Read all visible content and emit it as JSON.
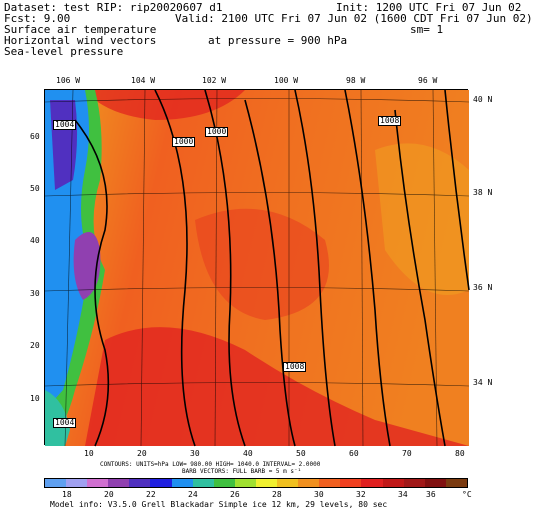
{
  "header": {
    "line1_left": "Dataset: test  RIP: rip20020607 d1",
    "line1_right": "Init: 1200 UTC Fri 07 Jun 02",
    "line2_left": "Fcst:    9.00",
    "line2_right": "Valid: 2100 UTC Fri 07 Jun 02 (1600 CDT Fri 07 Jun 02)",
    "line3_left": "Surface air temperature",
    "line3_right": "sm= 1",
    "line4_left": "Horizontal wind vectors",
    "line4_mid": "at pressure =  900 hPa",
    "line5_left": "Sea-level pressure"
  },
  "longitude_labels": [
    "106 W",
    "104 W",
    "102 W",
    "100 W",
    "98 W",
    "96 W"
  ],
  "latitude_labels": [
    "40 N",
    "38 N",
    "36 N",
    "34 N"
  ],
  "y_ticks": [
    "60",
    "50",
    "40",
    "30",
    "20",
    "10"
  ],
  "x_ticks": [
    "10",
    "20",
    "30",
    "40",
    "50",
    "60",
    "70",
    "80"
  ],
  "contour_labels": [
    "1004",
    "1000",
    "1000",
    "1008",
    "1008",
    "1004"
  ],
  "contours_info": "CONTOURS:  UNITS=hPa  LOW=  980.00      HIGH=  1040.0      INTERVAL=   2.0000",
  "barbs_info": "BARB VECTORS:  FULL BARB = 5 m s⁻¹",
  "colorbar": {
    "labels": [
      "18",
      "20",
      "22",
      "24",
      "26",
      "28",
      "30",
      "32",
      "34",
      "36",
      "°C"
    ],
    "colors": [
      "#5fa0f0",
      "#a0a0f0",
      "#d070d0",
      "#9040b0",
      "#5030c0",
      "#2020e0",
      "#2090f0",
      "#30c0a0",
      "#40c040",
      "#a0e030",
      "#f0f030",
      "#f0c020",
      "#f09020",
      "#f06020",
      "#f04020",
      "#e02020",
      "#c01818",
      "#a01818",
      "#801010",
      "#7a3a10"
    ]
  },
  "model_info": "Model info: V3.5.0   Grell   Blackadar  Simple ice    12 km,  29 levels,    80 sec"
}
